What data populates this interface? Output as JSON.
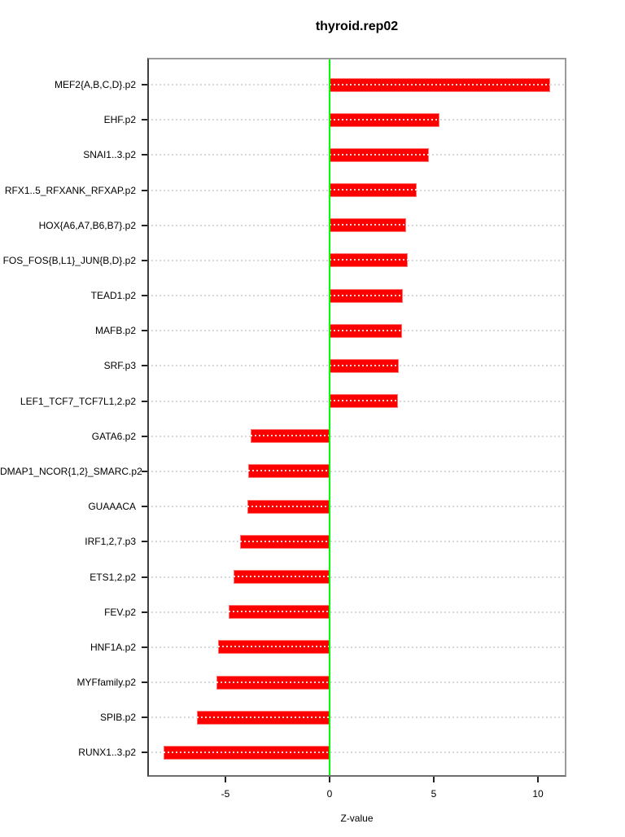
{
  "chart_data": {
    "type": "bar",
    "orientation": "horizontal",
    "title": "thyroid.rep02",
    "xlabel": "Z-value",
    "ylabel": "",
    "categories": [
      "MEF2{A,B,C,D}.p2",
      "EHF.p2",
      "SNAI1..3.p2",
      "RFX1..5_RFXANK_RFXAP.p2",
      "HOX{A6,A7,B6,B7}.p2",
      "FOS_FOS{B,L1}_JUN{B,D}.p2",
      "TEAD1.p2",
      "MAFB.p2",
      "SRF.p3",
      "LEF1_TCF7_TCF7L1,2.p2",
      "GATA6.p2",
      "DMAP1_NCOR{1,2}_SMARC.p2",
      "GUAAACA",
      "IRF1,2,7.p3",
      "ETS1,2.p2",
      "FEV.p2",
      "HNF1A.p2",
      "MYFfamily.p2",
      "SPIB.p2",
      "RUNX1..3.p2"
    ],
    "values": [
      10.6,
      5.27,
      4.78,
      4.19,
      3.68,
      3.74,
      3.53,
      3.49,
      3.32,
      3.28,
      -3.8,
      -3.91,
      -3.95,
      -4.31,
      -4.6,
      -4.86,
      -5.36,
      -5.43,
      -6.37,
      -7.98
    ],
    "xticks": [
      -5,
      0,
      5,
      10
    ],
    "xtick_labels": [
      "-5",
      "0",
      "5",
      "10"
    ],
    "xlim": [
      -8.75,
      11.37
    ],
    "grid": "dotted-horizontal-per-category",
    "legend_position": "none",
    "bar_color": "#ff0000",
    "zero_line_color": "#00ff00",
    "gridline_color": "#d8d8d8"
  }
}
